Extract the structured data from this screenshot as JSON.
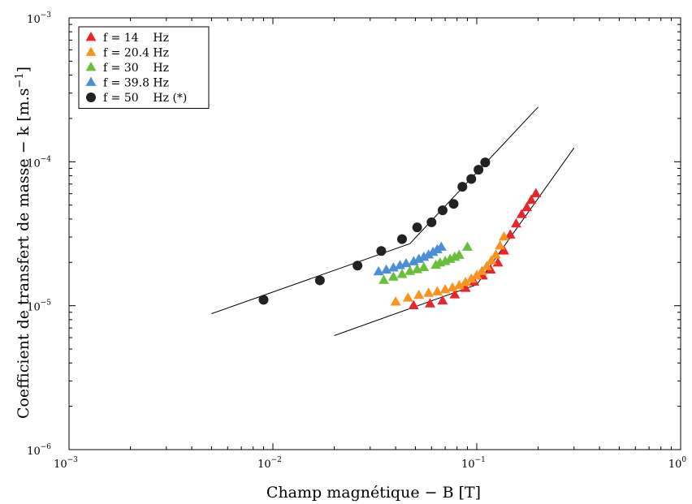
{
  "chart_data": {
    "type": "scatter",
    "x_scale": "log",
    "y_scale": "log",
    "xlim": [
      0.001,
      1
    ],
    "ylim": [
      1e-06,
      0.001
    ],
    "grid": false,
    "legend_position": "top-left",
    "xlabel": "Champ magnétique  − B [T]",
    "ylabel": "Coefficient de transfert de masse  − k [m.s",
    "ylabel_sup": "−1",
    "ylabel_end": "]",
    "x_ticks": [
      {
        "base": "10",
        "exp": "−3",
        "value": 0.001
      },
      {
        "base": "10",
        "exp": "−2",
        "value": 0.01
      },
      {
        "base": "10",
        "exp": "−1",
        "value": 0.1
      },
      {
        "base": "10",
        "exp": "0",
        "value": 1
      }
    ],
    "y_ticks": [
      {
        "base": "10",
        "exp": "−6",
        "value": 1e-06
      },
      {
        "base": "10",
        "exp": "−5",
        "value": 1e-05
      },
      {
        "base": "10",
        "exp": "−4",
        "value": 0.0001
      },
      {
        "base": "10",
        "exp": "−3",
        "value": 0.001
      }
    ],
    "series": [
      {
        "name": "f = 14    Hz",
        "marker": "triangle",
        "color": "#e8252b",
        "points": [
          [
            0.049,
            1e-05
          ],
          [
            0.059,
            1.03e-05
          ],
          [
            0.068,
            1.08e-05
          ],
          [
            0.078,
            1.19e-05
          ],
          [
            0.088,
            1.32e-05
          ],
          [
            0.097,
            1.46e-05
          ],
          [
            0.107,
            1.61e-05
          ],
          [
            0.117,
            1.77e-05
          ],
          [
            0.127,
            1.98e-05
          ],
          [
            0.136,
            2.4e-05
          ],
          [
            0.146,
            3.1e-05
          ],
          [
            0.156,
            3.7e-05
          ],
          [
            0.166,
            4.3e-05
          ],
          [
            0.176,
            4.8e-05
          ],
          [
            0.185,
            5.4e-05
          ],
          [
            0.195,
            6e-05
          ]
        ]
      },
      {
        "name": "f = 20.4 Hz",
        "marker": "triangle",
        "color": "#f7931e",
        "points": [
          [
            0.04,
            1.06e-05
          ],
          [
            0.046,
            1.13e-05
          ],
          [
            0.052,
            1.18e-05
          ],
          [
            0.058,
            1.22e-05
          ],
          [
            0.064,
            1.25e-05
          ],
          [
            0.07,
            1.29e-05
          ],
          [
            0.076,
            1.33e-05
          ],
          [
            0.082,
            1.38e-05
          ],
          [
            0.088,
            1.45e-05
          ],
          [
            0.094,
            1.53e-05
          ],
          [
            0.1,
            1.62e-05
          ],
          [
            0.106,
            1.73e-05
          ],
          [
            0.112,
            1.87e-05
          ],
          [
            0.118,
            2.05e-05
          ],
          [
            0.124,
            2.25e-05
          ],
          [
            0.13,
            2.6e-05
          ],
          [
            0.136,
            3e-05
          ]
        ]
      },
      {
        "name": "f = 30    Hz",
        "marker": "triangle",
        "color": "#6abf3a",
        "points": [
          [
            0.035,
            1.5e-05
          ],
          [
            0.039,
            1.58e-05
          ],
          [
            0.043,
            1.65e-05
          ],
          [
            0.047,
            1.73e-05
          ],
          [
            0.051,
            1.78e-05
          ],
          [
            0.055,
            1.84e-05
          ],
          [
            0.063,
            1.91e-05
          ],
          [
            0.066,
            1.98e-05
          ],
          [
            0.07,
            2.03e-05
          ],
          [
            0.074,
            2.1e-05
          ],
          [
            0.078,
            2.17e-05
          ],
          [
            0.082,
            2.24e-05
          ],
          [
            0.09,
            2.55e-05
          ]
        ]
      },
      {
        "name": "f = 39.8 Hz",
        "marker": "triangle",
        "color": "#4a90d9",
        "points": [
          [
            0.033,
            1.72e-05
          ],
          [
            0.036,
            1.77e-05
          ],
          [
            0.039,
            1.83e-05
          ],
          [
            0.042,
            1.9e-05
          ],
          [
            0.045,
            1.96e-05
          ],
          [
            0.049,
            2.02e-05
          ],
          [
            0.052,
            2.1e-05
          ],
          [
            0.055,
            2.17e-05
          ],
          [
            0.058,
            2.25e-05
          ],
          [
            0.061,
            2.35e-05
          ],
          [
            0.064,
            2.45e-05
          ],
          [
            0.067,
            2.55e-05
          ]
        ]
      },
      {
        "name": "f = 50    Hz (*)",
        "marker": "circle",
        "color": "#222222",
        "points": [
          [
            0.009,
            1.1e-05
          ],
          [
            0.017,
            1.5e-05
          ],
          [
            0.026,
            1.9e-05
          ],
          [
            0.034,
            2.4e-05
          ],
          [
            0.043,
            2.9e-05
          ],
          [
            0.051,
            3.5e-05
          ],
          [
            0.06,
            3.8e-05
          ],
          [
            0.068,
            4.6e-05
          ],
          [
            0.077,
            5.1e-05
          ],
          [
            0.085,
            6.7e-05
          ],
          [
            0.094,
            7.6e-05
          ],
          [
            0.102,
            8.8e-05
          ],
          [
            0.11,
            9.9e-05
          ]
        ]
      }
    ],
    "fit_lines": [
      {
        "points": [
          [
            0.005,
            8.8e-06
          ],
          [
            0.047,
            2.7e-05
          ],
          [
            0.2,
            0.00024
          ]
        ]
      },
      {
        "points": [
          [
            0.02,
            6.2e-06
          ],
          [
            0.1,
            1.4e-05
          ],
          [
            0.3,
            0.000125
          ]
        ]
      }
    ]
  }
}
